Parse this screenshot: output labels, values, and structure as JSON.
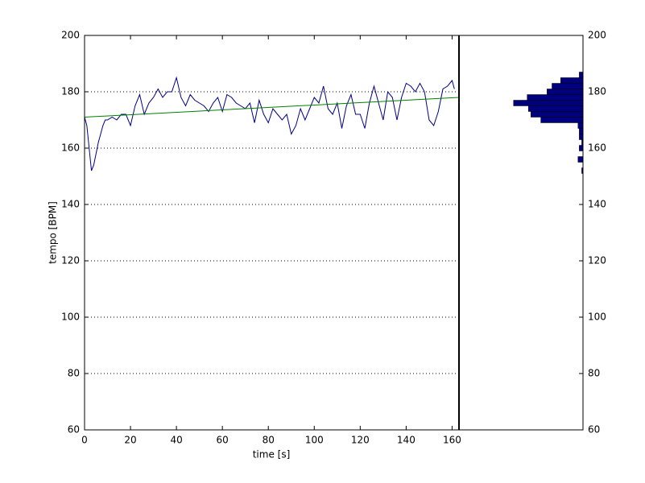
{
  "chart_data": [
    {
      "type": "line",
      "xlabel": "time [s]",
      "ylabel": "tempo [BPM]",
      "xlim": [
        0,
        163
      ],
      "ylim": [
        60,
        200
      ],
      "xticks": [
        0,
        20,
        40,
        60,
        80,
        100,
        120,
        140,
        160
      ],
      "yticks": [
        60,
        80,
        100,
        120,
        140,
        160,
        180,
        200
      ],
      "grid": true,
      "series": [
        {
          "color": "#00008b",
          "x": [
            0,
            1,
            2,
            3,
            4,
            5,
            6,
            7,
            8,
            9,
            10,
            12,
            14,
            16,
            18,
            20,
            22,
            24,
            26,
            28,
            30,
            32,
            34,
            36,
            38,
            40,
            42,
            44,
            46,
            48,
            50,
            52,
            54,
            56,
            58,
            60,
            62,
            64,
            66,
            68,
            70,
            72,
            74,
            76,
            78,
            80,
            82,
            84,
            86,
            88,
            90,
            92,
            94,
            96,
            98,
            100,
            102,
            104,
            106,
            108,
            110,
            112,
            114,
            116,
            118,
            120,
            122,
            124,
            126,
            128,
            130,
            132,
            134,
            136,
            138,
            140,
            142,
            144,
            146,
            148,
            150,
            152,
            154,
            156,
            158,
            160,
            161
          ],
          "values": [
            171,
            168,
            160,
            152,
            154,
            158,
            162,
            165,
            168,
            170,
            170,
            171,
            170,
            172,
            172,
            168,
            175,
            179,
            172,
            176,
            178,
            181,
            178,
            180,
            180,
            185,
            178,
            175,
            179,
            177,
            176,
            175,
            173,
            176,
            178,
            173,
            179,
            178,
            176,
            175,
            174,
            176,
            169,
            177,
            172,
            169,
            174,
            172,
            170,
            172,
            165,
            168,
            174,
            170,
            174,
            178,
            176,
            182,
            174,
            172,
            176,
            167,
            175,
            179,
            172,
            172,
            167,
            176,
            182,
            176,
            170,
            180,
            178,
            170,
            178,
            183,
            182,
            180,
            183,
            180,
            170,
            168,
            173,
            181,
            182,
            184,
            181
          ]
        },
        {
          "color": "#008000",
          "x": [
            0,
            163
          ],
          "values": [
            171,
            178
          ]
        }
      ]
    },
    {
      "type": "histogram",
      "orientation": "horizontal",
      "x_reversed": true,
      "color": "#00007f",
      "xlim": [
        0,
        100
      ],
      "ylim": [
        60,
        200
      ],
      "yticks": [
        60,
        80,
        100,
        120,
        140,
        160,
        180,
        200
      ],
      "bins": [
        151,
        153,
        155,
        157,
        159,
        161,
        163,
        165,
        167,
        169,
        171,
        173,
        175,
        177,
        179,
        181,
        183,
        185,
        187
      ],
      "values": [
        1,
        0,
        4,
        0,
        3,
        1,
        3,
        3,
        4,
        34,
        42,
        44,
        56,
        45,
        29,
        25,
        18,
        3
      ]
    }
  ]
}
